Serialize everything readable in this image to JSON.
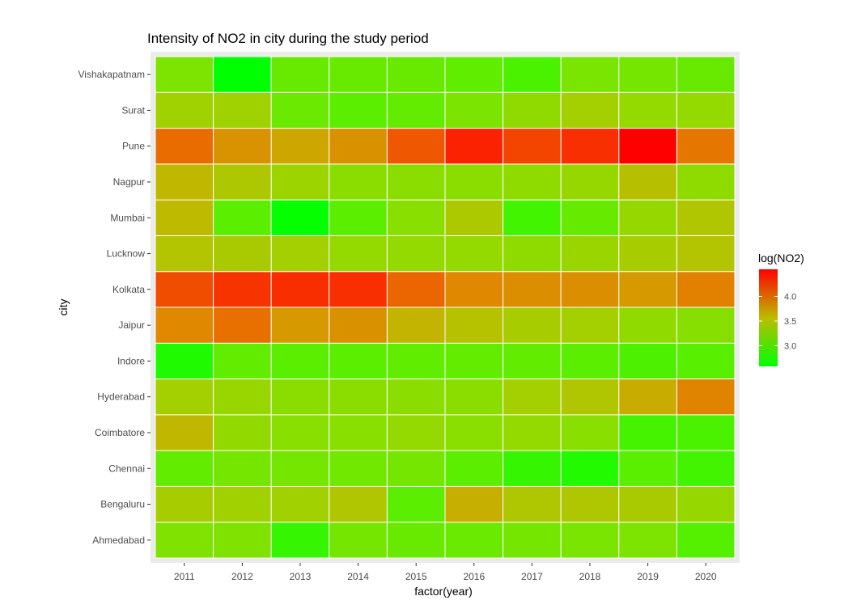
{
  "chart_data": {
    "type": "heatmap",
    "title": "Intensity of NO2 in city during the study period",
    "xlabel": "factor(year)",
    "ylabel": "city",
    "x": [
      "2011",
      "2012",
      "2013",
      "2014",
      "2015",
      "2016",
      "2017",
      "2018",
      "2019",
      "2020"
    ],
    "y": [
      "Ahmedabad",
      "Bengaluru",
      "Chennai",
      "Coimbatore",
      "Hyderabad",
      "Indore",
      "Jaipur",
      "Kolkata",
      "Lucknow",
      "Mumbai",
      "Nagpur",
      "Pune",
      "Surat",
      "Vishakapatnam"
    ],
    "values": [
      [
        3.18,
        3.18,
        2.82,
        3.13,
        3.06,
        3.07,
        3.13,
        3.15,
        3.17,
        2.97
      ],
      [
        3.42,
        3.38,
        3.38,
        3.48,
        3.0,
        3.66,
        3.47,
        3.47,
        3.44,
        3.32
      ],
      [
        3.03,
        3.13,
        3.13,
        3.1,
        3.13,
        3.0,
        2.82,
        2.73,
        2.99,
        2.88
      ],
      [
        3.6,
        3.29,
        3.23,
        3.23,
        3.3,
        3.24,
        3.3,
        3.23,
        2.89,
        2.92
      ],
      [
        3.4,
        3.33,
        3.25,
        3.25,
        3.25,
        3.25,
        3.4,
        3.48,
        3.68,
        3.92
      ],
      [
        2.72,
        3.03,
        3.0,
        3.0,
        3.02,
        3.04,
        3.03,
        3.0,
        2.93,
        2.98
      ],
      [
        3.9,
        4.03,
        3.8,
        3.85,
        3.62,
        3.52,
        3.42,
        3.4,
        3.28,
        3.22
      ],
      [
        4.2,
        4.32,
        4.35,
        4.34,
        4.08,
        3.9,
        3.86,
        3.86,
        3.8,
        3.94
      ],
      [
        3.5,
        3.44,
        3.4,
        3.3,
        3.3,
        3.3,
        3.27,
        3.34,
        3.42,
        3.5
      ],
      [
        3.58,
        3.0,
        2.6,
        3.0,
        3.23,
        3.45,
        2.88,
        3.05,
        3.32,
        3.48
      ],
      [
        3.6,
        3.46,
        3.35,
        3.25,
        3.25,
        3.25,
        3.27,
        3.32,
        3.53,
        3.27
      ],
      [
        4.05,
        3.84,
        3.72,
        3.85,
        4.15,
        4.4,
        4.24,
        4.34,
        4.55,
        3.99
      ],
      [
        3.37,
        3.37,
        3.08,
        3.0,
        3.04,
        3.16,
        3.28,
        3.4,
        3.3,
        3.3
      ],
      [
        3.17,
        2.58,
        3.06,
        3.06,
        3.06,
        3.02,
        2.92,
        3.15,
        3.13,
        3.06
      ]
    ],
    "color_scale": {
      "low": "#00ff00",
      "high": "#ff0000",
      "limits": [
        2.58,
        4.55
      ]
    },
    "legend": {
      "title": "log(NO2)",
      "ticks": [
        "3.0",
        "3.5",
        "4.0"
      ],
      "tick_values": [
        3.0,
        3.5,
        4.0
      ],
      "position": "right"
    },
    "panel_background": "#ebebeb",
    "grid": false
  }
}
